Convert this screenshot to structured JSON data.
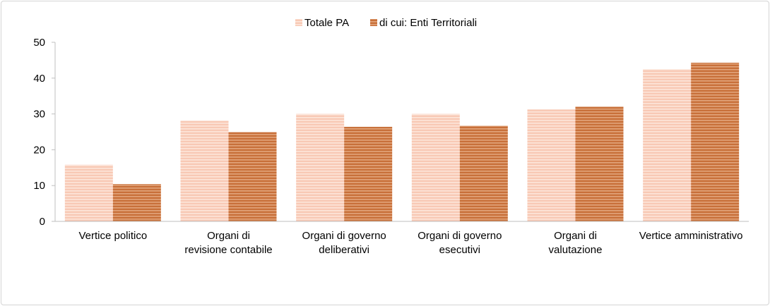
{
  "chart_data": {
    "type": "bar",
    "title": "",
    "xlabel": "",
    "ylabel": "",
    "ylim": [
      0,
      50
    ],
    "yticks": [
      0,
      10,
      20,
      30,
      40,
      50
    ],
    "grid": false,
    "legend_position": "top-center",
    "categories": [
      [
        "Vertice politico"
      ],
      [
        "Organi di",
        "revisione contabile"
      ],
      [
        "Organi di governo",
        "deliberativi"
      ],
      [
        "Organi di governo",
        "esecutivi"
      ],
      [
        "Organi di",
        "valutazione"
      ],
      [
        "Vertice amministrativo"
      ]
    ],
    "series": [
      {
        "name": "Totale PA",
        "color": "#f8c9b5",
        "stripe": "#fde7dc",
        "values": [
          15.8,
          28.1,
          30.0,
          30.0,
          31.3,
          42.5
        ]
      },
      {
        "name": "di cui: Enti Territoriali",
        "color": "#c8703a",
        "stripe": "#e3a77f",
        "values": [
          10.4,
          24.9,
          26.4,
          26.7,
          32.0,
          44.3
        ]
      }
    ]
  }
}
